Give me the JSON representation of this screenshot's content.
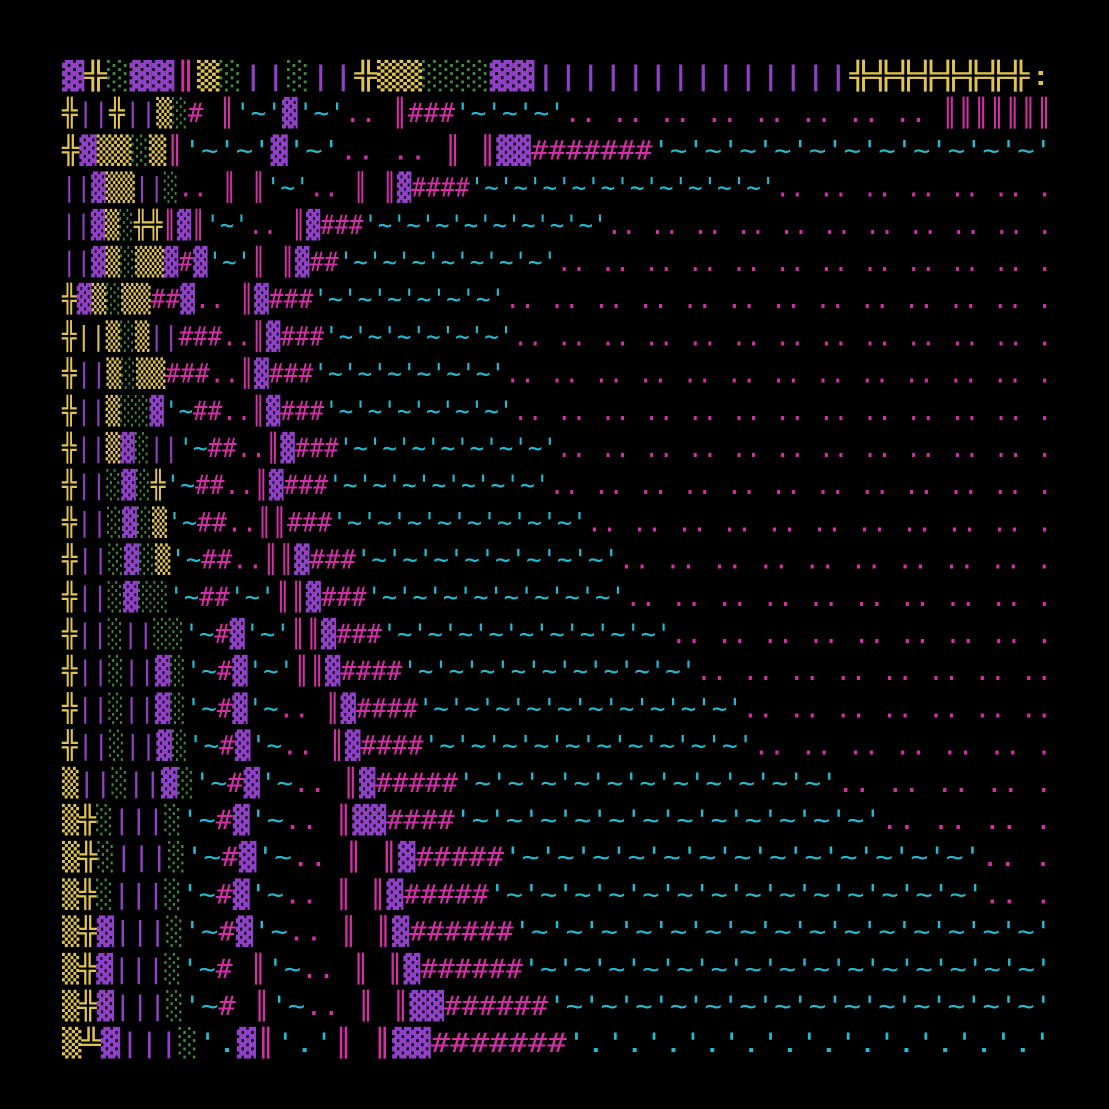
{
  "palette": {
    "p": "#9140c8",
    "y": "#e0c452",
    "g": "#3f8a3f",
    "m": "#d42fa6",
    "c": "#22bcd0"
  },
  "rows": [
    [
      [
        "▓",
        "p"
      ],
      [
        "╬",
        "y"
      ],
      [
        "░",
        "g"
      ],
      [
        "▓▓",
        "p"
      ],
      [
        "║",
        "m"
      ],
      [
        "▒",
        "y"
      ],
      [
        "░",
        "g"
      ],
      [
        "||",
        "p"
      ],
      [
        "░",
        "g"
      ],
      [
        "||",
        "p"
      ],
      [
        "╬▒▒",
        "y"
      ],
      [
        "░░░",
        "g"
      ],
      [
        "▓▓||||||||||||||",
        "p"
      ],
      [
        "╬╬╬╬╬╬╬╬:",
        "y"
      ]
    ],
    [
      [
        "╬",
        "y"
      ],
      [
        "||",
        "p"
      ],
      [
        "╬",
        "y"
      ],
      [
        "||",
        "p"
      ],
      [
        "▒",
        "y"
      ],
      [
        "░",
        "g"
      ],
      [
        "# ║",
        "m"
      ],
      [
        "'~'",
        "c"
      ],
      [
        "▓",
        "p"
      ],
      [
        "'~'",
        "c"
      ],
      [
        ".. ║###",
        "m"
      ],
      [
        "'~'~'~'",
        "c"
      ],
      [
        ".. .. .. .. .. .. .. .. ║║║║║║║",
        "m"
      ]
    ],
    [
      [
        "╬",
        "y"
      ],
      [
        "▓",
        "p"
      ],
      [
        "▒▒",
        "y"
      ],
      [
        "░",
        "g"
      ],
      [
        "▒",
        "y"
      ],
      [
        "║",
        "m"
      ],
      [
        "'~'~'",
        "c"
      ],
      [
        "▓",
        "p"
      ],
      [
        "'~'",
        "c"
      ],
      [
        ".. .. ║ ║",
        "m"
      ],
      [
        "▓▓",
        "p"
      ],
      [
        "#######",
        "m"
      ],
      [
        "'~'~'~'~'~'~'~'~'~'~'~'",
        "c"
      ]
    ],
    [
      [
        "||▓",
        "p"
      ],
      [
        "▒▒",
        "y"
      ],
      [
        "||",
        "p"
      ],
      [
        "░",
        "g"
      ],
      [
        ".. ║ ║",
        "m"
      ],
      [
        "'~'",
        "c"
      ],
      [
        ".. ║ ║",
        "m"
      ],
      [
        "▓",
        "p"
      ],
      [
        "####",
        "m"
      ],
      [
        "'~'~'~'~'~'~'~'~'~'~'",
        "c"
      ],
      [
        ".. .. .. .. .. .. .",
        "m"
      ]
    ],
    [
      [
        "||▓",
        "p"
      ],
      [
        "▒",
        "y"
      ],
      [
        "░",
        "g"
      ],
      [
        "╬╬",
        "y"
      ],
      [
        "║",
        "m"
      ],
      [
        "▓",
        "p"
      ],
      [
        "║",
        "m"
      ],
      [
        "'~'",
        "c"
      ],
      [
        ".. ║",
        "m"
      ],
      [
        "▓",
        "p"
      ],
      [
        "###",
        "m"
      ],
      [
        "'~'~'~'~'~'~'~'~'",
        "c"
      ],
      [
        ".. .. .. .. .. .. .. .. .. .. .",
        "m"
      ]
    ],
    [
      [
        "||▓",
        "p"
      ],
      [
        "▒",
        "y"
      ],
      [
        "░",
        "g"
      ],
      [
        "▒▒",
        "y"
      ],
      [
        "▓",
        "p"
      ],
      [
        "#",
        "m"
      ],
      [
        "▓",
        "p"
      ],
      [
        "'~'",
        "c"
      ],
      [
        "║ ║",
        "m"
      ],
      [
        "▓",
        "p"
      ],
      [
        "##",
        "m"
      ],
      [
        "'~'~'~'~'~'~'~'",
        "c"
      ],
      [
        ".. .. .. .. .. .. .. .. .. .. .. .",
        "m"
      ]
    ],
    [
      [
        "╬",
        "y"
      ],
      [
        "▓",
        "p"
      ],
      [
        "▒",
        "y"
      ],
      [
        "░",
        "g"
      ],
      [
        "▒▒",
        "y"
      ],
      [
        "##",
        "m"
      ],
      [
        "▓",
        "p"
      ],
      [
        ".. ║",
        "m"
      ],
      [
        "▓",
        "p"
      ],
      [
        "###",
        "m"
      ],
      [
        "'~'~'~'~'~'~'",
        "c"
      ],
      [
        ".. .. .. .. .. .. .. .. .. .. .. .. .",
        "m"
      ]
    ],
    [
      [
        "╬||",
        "y"
      ],
      [
        "▒",
        "y"
      ],
      [
        "░",
        "g"
      ],
      [
        "▒",
        "y"
      ],
      [
        "||",
        "p"
      ],
      [
        "###..║",
        "m"
      ],
      [
        "▓",
        "p"
      ],
      [
        "###",
        "m"
      ],
      [
        "'~'~'~'~'~'~'",
        "c"
      ],
      [
        ".. .. .. .. .. .. .. .. .. .. .. .. .",
        "m"
      ]
    ],
    [
      [
        "╬",
        "y"
      ],
      [
        "||",
        "p"
      ],
      [
        "▒",
        "y"
      ],
      [
        "░",
        "g"
      ],
      [
        "▒▒",
        "y"
      ],
      [
        "###..║",
        "m"
      ],
      [
        "▓",
        "p"
      ],
      [
        "###",
        "m"
      ],
      [
        "'~'~'~'~'~'~'",
        "c"
      ],
      [
        ".. .. .. .. .. .. .. .. .. .. .. .. .",
        "m"
      ]
    ],
    [
      [
        "╬",
        "y"
      ],
      [
        "||",
        "p"
      ],
      [
        "▒",
        "y"
      ],
      [
        "░░",
        "g"
      ],
      [
        "▓",
        "p"
      ],
      [
        "'~",
        "c"
      ],
      [
        "##..║",
        "m"
      ],
      [
        "▓",
        "p"
      ],
      [
        "###",
        "m"
      ],
      [
        "'~'~'~'~'~'~'",
        "c"
      ],
      [
        ".. .. .. .. .. .. .. .. .. .. .. .. .",
        "m"
      ]
    ],
    [
      [
        "╬",
        "y"
      ],
      [
        "||",
        "p"
      ],
      [
        "▒",
        "y"
      ],
      [
        "▓",
        "p"
      ],
      [
        "░",
        "g"
      ],
      [
        "||",
        "p"
      ],
      [
        "'~",
        "c"
      ],
      [
        "##..║",
        "m"
      ],
      [
        "▓",
        "p"
      ],
      [
        "###",
        "m"
      ],
      [
        "'~'~'~'~'~'~'~'",
        "c"
      ],
      [
        ".. .. .. .. .. .. .. .. .. .. .. .",
        "m"
      ]
    ],
    [
      [
        "╬",
        "y"
      ],
      [
        "||",
        "p"
      ],
      [
        "░",
        "g"
      ],
      [
        "▓",
        "p"
      ],
      [
        "░",
        "g"
      ],
      [
        "╬",
        "y"
      ],
      [
        "'~",
        "c"
      ],
      [
        "##..║",
        "m"
      ],
      [
        "▓",
        "p"
      ],
      [
        "###",
        "m"
      ],
      [
        "'~'~'~'~'~'~'~'",
        "c"
      ],
      [
        ".. .. .. .. .. .. .. .. .. .. .. .",
        "m"
      ]
    ],
    [
      [
        "╬",
        "y"
      ],
      [
        "||",
        "p"
      ],
      [
        "░",
        "g"
      ],
      [
        "▓",
        "p"
      ],
      [
        "░",
        "g"
      ],
      [
        "▒",
        "y"
      ],
      [
        "'~",
        "c"
      ],
      [
        "##..║║###",
        "m"
      ],
      [
        "'~'~'~'~'~'~'~'~'",
        "c"
      ],
      [
        ".. .. .. .. .. .. .. .. .. .. .",
        "m"
      ]
    ],
    [
      [
        "╬",
        "y"
      ],
      [
        "||",
        "p"
      ],
      [
        "░",
        "g"
      ],
      [
        "▓",
        "p"
      ],
      [
        "░",
        "g"
      ],
      [
        "▒",
        "y"
      ],
      [
        "'~",
        "c"
      ],
      [
        "##..║║",
        "m"
      ],
      [
        "▓",
        "p"
      ],
      [
        "###",
        "m"
      ],
      [
        "'~'~'~'~'~'~'~'~'",
        "c"
      ],
      [
        ".. .. .. .. .. .. .. .. .. .",
        "m"
      ]
    ],
    [
      [
        "╬",
        "y"
      ],
      [
        "||",
        "p"
      ],
      [
        "░",
        "g"
      ],
      [
        "▓",
        "p"
      ],
      [
        "░░",
        "g"
      ],
      [
        "'~",
        "c"
      ],
      [
        "##",
        "m"
      ],
      [
        "'~'",
        "c"
      ],
      [
        "║║",
        "m"
      ],
      [
        "▓",
        "p"
      ],
      [
        "###",
        "m"
      ],
      [
        "'~'~'~'~'~'~'~'~'",
        "c"
      ],
      [
        ".. .. .. .. .. .. .. .. .. .",
        "m"
      ]
    ],
    [
      [
        "╬",
        "y"
      ],
      [
        "||",
        "p"
      ],
      [
        "░",
        "g"
      ],
      [
        "||",
        "p"
      ],
      [
        "░░",
        "g"
      ],
      [
        "'~",
        "c"
      ],
      [
        "#",
        "m"
      ],
      [
        "▓",
        "p"
      ],
      [
        "'~'",
        "c"
      ],
      [
        "║║",
        "m"
      ],
      [
        "▓",
        "p"
      ],
      [
        "###",
        "m"
      ],
      [
        "'~'~'~'~'~'~'~'~'~'",
        "c"
      ],
      [
        ".. .. .. .. .. .. .. .. .",
        "m"
      ]
    ],
    [
      [
        "╬",
        "y"
      ],
      [
        "||",
        "p"
      ],
      [
        "░",
        "g"
      ],
      [
        "||▓",
        "p"
      ],
      [
        "░",
        "g"
      ],
      [
        "'~",
        "c"
      ],
      [
        "#",
        "m"
      ],
      [
        "▓",
        "p"
      ],
      [
        "'~'",
        "c"
      ],
      [
        "║║",
        "m"
      ],
      [
        "▓",
        "p"
      ],
      [
        "####",
        "m"
      ],
      [
        "'~'~'~'~'~'~'~'~'~'",
        "c"
      ],
      [
        ".. .. .. .. .. .. .. ..",
        "m"
      ]
    ],
    [
      [
        "╬",
        "y"
      ],
      [
        "||",
        "p"
      ],
      [
        "░",
        "g"
      ],
      [
        "||▓",
        "p"
      ],
      [
        "░",
        "g"
      ],
      [
        "'~",
        "c"
      ],
      [
        "#",
        "m"
      ],
      [
        "▓",
        "p"
      ],
      [
        "'~",
        "c"
      ],
      [
        ".. ║",
        "m"
      ],
      [
        "▓",
        "p"
      ],
      [
        "####",
        "m"
      ],
      [
        "'~'~'~'~'~'~'~'~'~'~'",
        "c"
      ],
      [
        ".. .. .. .. .. .. ..",
        "m"
      ]
    ],
    [
      [
        "╬",
        "y"
      ],
      [
        "||",
        "p"
      ],
      [
        "░",
        "g"
      ],
      [
        "||▓",
        "p"
      ],
      [
        "░",
        "g"
      ],
      [
        "'~",
        "c"
      ],
      [
        "#",
        "m"
      ],
      [
        "▓",
        "p"
      ],
      [
        "'~",
        "c"
      ],
      [
        ".. ║",
        "m"
      ],
      [
        "▓",
        "p"
      ],
      [
        "####",
        "m"
      ],
      [
        "'~'~'~'~'~'~'~'~'~'~'",
        "c"
      ],
      [
        ".. .. .. .. .. .. .",
        "m"
      ]
    ],
    [
      [
        "▒",
        "y"
      ],
      [
        "||",
        "p"
      ],
      [
        "░",
        "g"
      ],
      [
        "||▓",
        "p"
      ],
      [
        "░",
        "g"
      ],
      [
        "'~",
        "c"
      ],
      [
        "#",
        "m"
      ],
      [
        "▓",
        "p"
      ],
      [
        "'~",
        "c"
      ],
      [
        ".. ║",
        "m"
      ],
      [
        "▓",
        "p"
      ],
      [
        "#####",
        "m"
      ],
      [
        "'~'~'~'~'~'~'~'~'~'~'~'",
        "c"
      ],
      [
        ".. .. .. .. .",
        "m"
      ]
    ],
    [
      [
        "▒",
        "y"
      ],
      [
        "╬",
        "y"
      ],
      [
        "░",
        "g"
      ],
      [
        "|||",
        "p"
      ],
      [
        "░",
        "g"
      ],
      [
        "'~",
        "c"
      ],
      [
        "#",
        "m"
      ],
      [
        "▓",
        "p"
      ],
      [
        "'~",
        "c"
      ],
      [
        ".. ║",
        "m"
      ],
      [
        "▓▓",
        "p"
      ],
      [
        "####",
        "m"
      ],
      [
        "'~'~'~'~'~'~'~'~'~'~'~'~'",
        "c"
      ],
      [
        ".. .. .. .",
        "m"
      ]
    ],
    [
      [
        "▒",
        "y"
      ],
      [
        "╬",
        "y"
      ],
      [
        "░",
        "g"
      ],
      [
        "|||",
        "p"
      ],
      [
        "░",
        "g"
      ],
      [
        "'~",
        "c"
      ],
      [
        "#",
        "m"
      ],
      [
        "▓",
        "p"
      ],
      [
        "'~",
        "c"
      ],
      [
        ".. ║ ║",
        "m"
      ],
      [
        "▓",
        "p"
      ],
      [
        "#####",
        "m"
      ],
      [
        "'~'~'~'~'~'~'~'~'~'~'~'~'~'",
        "c"
      ],
      [
        ".. .",
        "m"
      ]
    ],
    [
      [
        "▒",
        "y"
      ],
      [
        "╬",
        "y"
      ],
      [
        "░",
        "g"
      ],
      [
        "|||",
        "p"
      ],
      [
        "░",
        "g"
      ],
      [
        "'~",
        "c"
      ],
      [
        "#",
        "m"
      ],
      [
        "▓",
        "p"
      ],
      [
        "'~",
        "c"
      ],
      [
        ".. ║ ║",
        "m"
      ],
      [
        "▓",
        "p"
      ],
      [
        "#####",
        "m"
      ],
      [
        "'~'~'~'~'~'~'~'~'~'~'~'~'~'~'",
        "c"
      ],
      [
        ".. .",
        "m"
      ]
    ],
    [
      [
        "▒",
        "y"
      ],
      [
        "╬",
        "y"
      ],
      [
        "▓",
        "p"
      ],
      [
        "|||",
        "p"
      ],
      [
        "░",
        "g"
      ],
      [
        "'~",
        "c"
      ],
      [
        "#",
        "m"
      ],
      [
        "▓",
        "p"
      ],
      [
        "'~",
        "c"
      ],
      [
        ".. ║ ║",
        "m"
      ],
      [
        "▓",
        "p"
      ],
      [
        "######",
        "m"
      ],
      [
        "'~'~'~'~'~'~'~'~'~'~'~'~'~'~'~'",
        "c"
      ]
    ],
    [
      [
        "▒",
        "y"
      ],
      [
        "╬",
        "y"
      ],
      [
        "▓",
        "p"
      ],
      [
        "|||",
        "p"
      ],
      [
        "░",
        "g"
      ],
      [
        "'~",
        "c"
      ],
      [
        "# ║",
        "m"
      ],
      [
        "'~",
        "c"
      ],
      [
        ".. ║ ║",
        "m"
      ],
      [
        "▓",
        "p"
      ],
      [
        "######",
        "m"
      ],
      [
        "'~'~'~'~'~'~'~'~'~'~'~'~'~'~'~'",
        "c"
      ]
    ],
    [
      [
        "▒",
        "y"
      ],
      [
        "╬",
        "y"
      ],
      [
        "▓",
        "p"
      ],
      [
        "|||",
        "p"
      ],
      [
        "░",
        "g"
      ],
      [
        "'~",
        "c"
      ],
      [
        "# ║",
        "m"
      ],
      [
        "'~",
        "c"
      ],
      [
        ".. ║ ║",
        "m"
      ],
      [
        "▓▓",
        "p"
      ],
      [
        "######",
        "m"
      ],
      [
        "'~'~'~'~'~'~'~'~'~'~'~'~'~'~'",
        "c"
      ]
    ],
    [
      [
        "▒",
        "y"
      ],
      [
        "╩",
        "y"
      ],
      [
        "▓",
        "p"
      ],
      [
        "|||",
        "p"
      ],
      [
        "░",
        "g"
      ],
      [
        "'.",
        "c"
      ],
      [
        "▓",
        "p"
      ],
      [
        "║",
        "m"
      ],
      [
        "'.'",
        "c"
      ],
      [
        "║ ║",
        "m"
      ],
      [
        "▓▓",
        "p"
      ],
      [
        "#######",
        "m"
      ],
      [
        "'.'.'.'.'.'.'.'.'.'.'.'.'",
        "c"
      ]
    ]
  ]
}
